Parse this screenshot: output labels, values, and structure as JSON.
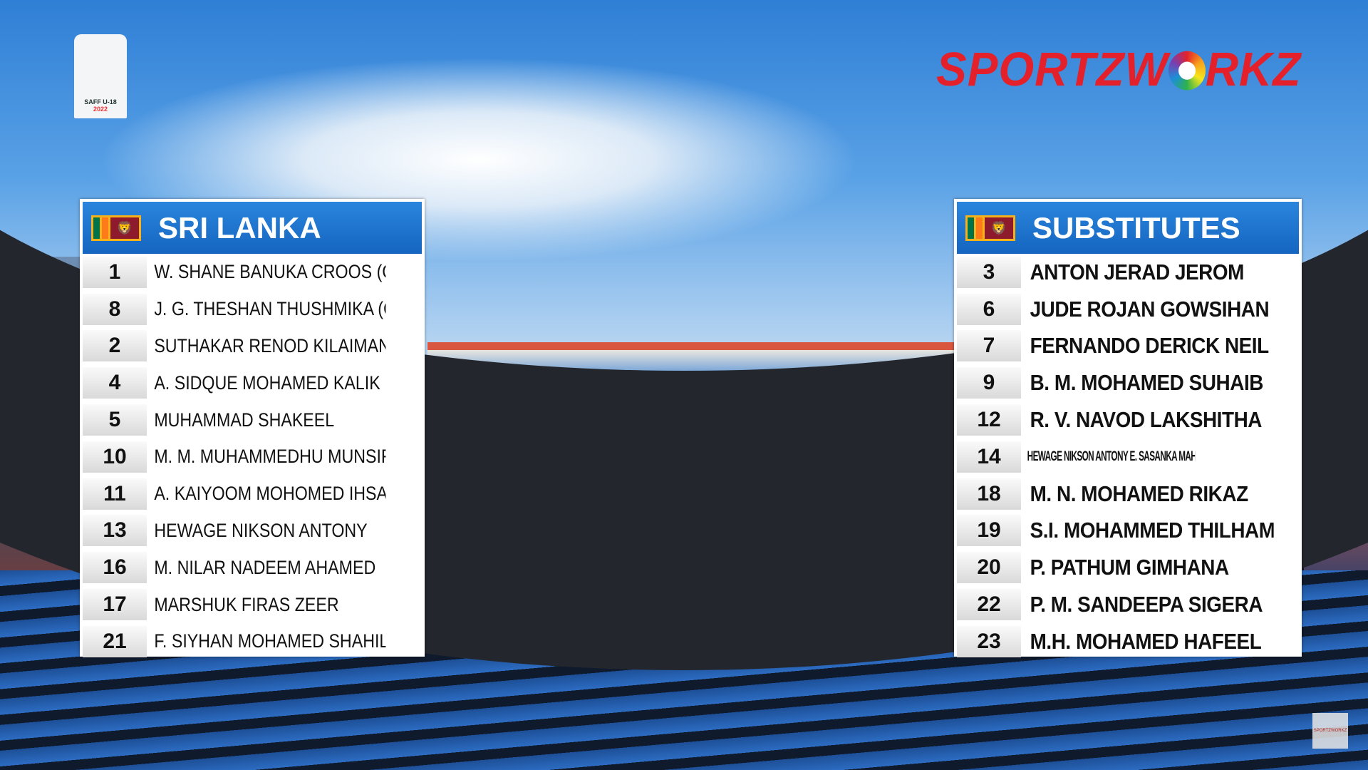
{
  "tournament_logo": {
    "text": "SAFF U-18",
    "year": "2022"
  },
  "broadcaster": {
    "name_before": "SPORTZW",
    "name_after": "RKZ",
    "watermark": "SPORTZWORKZ"
  },
  "colors": {
    "header_blue": "#1a6fcc",
    "brand_red": "#e4212b"
  },
  "starting": {
    "title": "SRI LANKA",
    "flag_icon": "sri-lanka-flag",
    "players": [
      {
        "number": "1",
        "name": "W. SHANE BANUKA CROOS (GK)"
      },
      {
        "number": "8",
        "name": "J. G. THESHAN THUSHMIKA  (C)"
      },
      {
        "number": "2",
        "name": "SUTHAKAR RENOD KILAIMAN"
      },
      {
        "number": "4",
        "name": "A. SIDQUE MOHAMED KALIK"
      },
      {
        "number": "5",
        "name": "MUHAMMAD SHAKEEL"
      },
      {
        "number": "10",
        "name": "M. M. MUHAMMEDHU MUNSIF"
      },
      {
        "number": "11",
        "name": "A. KAIYOOM MOHOMED IHSAN"
      },
      {
        "number": "13",
        "name": "HEWAGE NIKSON ANTONY"
      },
      {
        "number": "16",
        "name": "M. NILAR NADEEM AHAMED"
      },
      {
        "number": "17",
        "name": "MARSHUK FIRAS ZEER"
      },
      {
        "number": "21",
        "name": "F. SIYHAN MOHAMED SHAHIL"
      }
    ]
  },
  "substitutes": {
    "title": "SUBSTITUTES",
    "flag_icon": "sri-lanka-flag",
    "players": [
      {
        "number": "3",
        "name": "ANTON JERAD JEROM"
      },
      {
        "number": "6",
        "name": "JUDE ROJAN GOWSIHAN"
      },
      {
        "number": "7",
        "name": "FERNANDO DERICK NEIL"
      },
      {
        "number": "9",
        "name": "B. M. MOHAMED SUHAIB"
      },
      {
        "number": "12",
        "name": "R. V. NAVOD LAKSHITHA"
      },
      {
        "number": "14",
        "name": "HEWAGE NIKSON ANTONY E. SASANKA MAHESH THIMANKA"
      },
      {
        "number": "18",
        "name": "M. N. MOHAMED RIKAZ"
      },
      {
        "number": "19",
        "name": "S.I. MOHAMMED THILHAM"
      },
      {
        "number": "20",
        "name": "P. PATHUM GIMHANA"
      },
      {
        "number": "22",
        "name": "P. M. SANDEEPA SIGERA"
      },
      {
        "number": "23",
        "name": "M.H. MOHAMED HAFEEL"
      }
    ]
  }
}
